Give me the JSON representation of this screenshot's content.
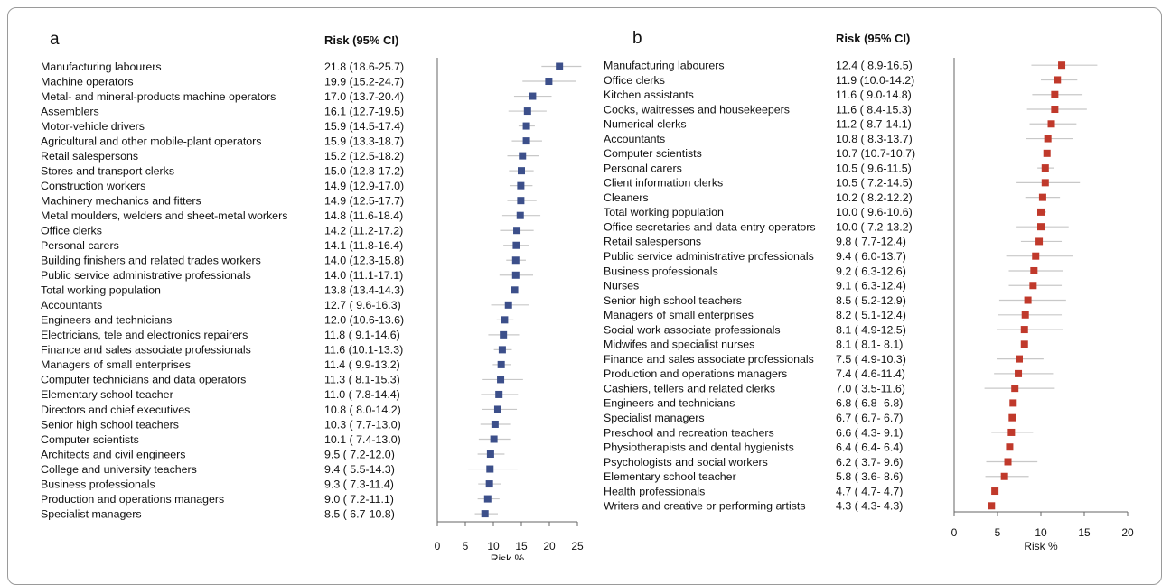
{
  "chart_data": [
    {
      "type": "forest",
      "panel_label": "a",
      "column_header": "Risk (95% CI)",
      "xlabel": "Risk %",
      "xlim": [
        0,
        25
      ],
      "xticks": [
        0,
        5,
        10,
        15,
        20,
        25
      ],
      "marker_color": "#3c4f8a",
      "rows": [
        {
          "label": "Manufacturing labourers",
          "ci_text": "21.8 (18.6-25.7)",
          "value": 21.8,
          "lower": 18.6,
          "upper": 25.7
        },
        {
          "label": "Machine operators",
          "ci_text": "19.9 (15.2-24.7)",
          "value": 19.9,
          "lower": 15.2,
          "upper": 24.7
        },
        {
          "label": "Metal- and mineral-products machine operators",
          "ci_text": "17.0 (13.7-20.4)",
          "value": 17.0,
          "lower": 13.7,
          "upper": 20.4
        },
        {
          "label": "Assemblers",
          "ci_text": "16.1 (12.7-19.5)",
          "value": 16.1,
          "lower": 12.7,
          "upper": 19.5
        },
        {
          "label": "Motor-vehicle drivers",
          "ci_text": "15.9 (14.5-17.4)",
          "value": 15.9,
          "lower": 14.5,
          "upper": 17.4
        },
        {
          "label": "Agricultural and other mobile-plant operators",
          "ci_text": "15.9 (13.3-18.7)",
          "value": 15.9,
          "lower": 13.3,
          "upper": 18.7
        },
        {
          "label": "Retail salespersons",
          "ci_text": "15.2 (12.5-18.2)",
          "value": 15.2,
          "lower": 12.5,
          "upper": 18.2
        },
        {
          "label": "Stores and transport clerks",
          "ci_text": "15.0 (12.8-17.2)",
          "value": 15.0,
          "lower": 12.8,
          "upper": 17.2
        },
        {
          "label": "Construction workers",
          "ci_text": "14.9 (12.9-17.0)",
          "value": 14.9,
          "lower": 12.9,
          "upper": 17.0
        },
        {
          "label": "Machinery mechanics and fitters",
          "ci_text": "14.9 (12.5-17.7)",
          "value": 14.9,
          "lower": 12.5,
          "upper": 17.7
        },
        {
          "label": "Metal moulders, welders and sheet-metal workers",
          "ci_text": "14.8 (11.6-18.4)",
          "value": 14.8,
          "lower": 11.6,
          "upper": 18.4
        },
        {
          "label": "Office clerks",
          "ci_text": "14.2 (11.2-17.2)",
          "value": 14.2,
          "lower": 11.2,
          "upper": 17.2
        },
        {
          "label": "Personal carers",
          "ci_text": "14.1 (11.8-16.4)",
          "value": 14.1,
          "lower": 11.8,
          "upper": 16.4
        },
        {
          "label": "Building finishers and related trades workers",
          "ci_text": "14.0 (12.3-15.8)",
          "value": 14.0,
          "lower": 12.3,
          "upper": 15.8
        },
        {
          "label": "Public service administrative professionals",
          "ci_text": "14.0 (11.1-17.1)",
          "value": 14.0,
          "lower": 11.1,
          "upper": 17.1
        },
        {
          "label": "Total working population",
          "ci_text": "13.8 (13.4-14.3)",
          "value": 13.8,
          "lower": 13.4,
          "upper": 14.3
        },
        {
          "label": "Accountants",
          "ci_text": "12.7 ( 9.6-16.3)",
          "value": 12.7,
          "lower": 9.6,
          "upper": 16.3
        },
        {
          "label": "Engineers and technicians",
          "ci_text": "12.0 (10.6-13.6)",
          "value": 12.0,
          "lower": 10.6,
          "upper": 13.6
        },
        {
          "label": "Electricians, tele and electronics repairers",
          "ci_text": "11.8 ( 9.1-14.6)",
          "value": 11.8,
          "lower": 9.1,
          "upper": 14.6
        },
        {
          "label": "Finance and sales associate professionals",
          "ci_text": "11.6 (10.1-13.3)",
          "value": 11.6,
          "lower": 10.1,
          "upper": 13.3
        },
        {
          "label": "Managers of small enterprises",
          "ci_text": "11.4 ( 9.9-13.2)",
          "value": 11.4,
          "lower": 9.9,
          "upper": 13.2
        },
        {
          "label": "Computer technicians and data operators",
          "ci_text": "11.3 ( 8.1-15.3)",
          "value": 11.3,
          "lower": 8.1,
          "upper": 15.3
        },
        {
          "label": "Elementary school teacher",
          "ci_text": "11.0 ( 7.8-14.4)",
          "value": 11.0,
          "lower": 7.8,
          "upper": 14.4
        },
        {
          "label": "Directors and chief executives",
          "ci_text": "10.8 ( 8.0-14.2)",
          "value": 10.8,
          "lower": 8.0,
          "upper": 14.2
        },
        {
          "label": "Senior high school teachers",
          "ci_text": "10.3 ( 7.7-13.0)",
          "value": 10.3,
          "lower": 7.7,
          "upper": 13.0
        },
        {
          "label": "Computer scientists",
          "ci_text": "10.1 ( 7.4-13.0)",
          "value": 10.1,
          "lower": 7.4,
          "upper": 13.0
        },
        {
          "label": "Architects and civil engineers",
          "ci_text": "9.5 ( 7.2-12.0)",
          "value": 9.5,
          "lower": 7.2,
          "upper": 12.0
        },
        {
          "label": "College and university teachers",
          "ci_text": "9.4 ( 5.5-14.3)",
          "value": 9.4,
          "lower": 5.5,
          "upper": 14.3
        },
        {
          "label": "Business professionals",
          "ci_text": "9.3 ( 7.3-11.4)",
          "value": 9.3,
          "lower": 7.3,
          "upper": 11.4
        },
        {
          "label": "Production and operations managers",
          "ci_text": "9.0 ( 7.2-11.1)",
          "value": 9.0,
          "lower": 7.2,
          "upper": 11.1
        },
        {
          "label": "Specialist managers",
          "ci_text": "8.5 ( 6.7-10.8)",
          "value": 8.5,
          "lower": 6.7,
          "upper": 10.8
        }
      ]
    },
    {
      "type": "forest",
      "panel_label": "b",
      "column_header": "Risk (95% CI)",
      "xlabel": "Risk %",
      "xlim": [
        0,
        20
      ],
      "xticks": [
        0,
        5,
        10,
        15,
        20
      ],
      "marker_color": "#c0392b",
      "rows": [
        {
          "label": "Manufacturing labourers",
          "ci_text": "12.4 ( 8.9-16.5)",
          "value": 12.4,
          "lower": 8.9,
          "upper": 16.5
        },
        {
          "label": "Office clerks",
          "ci_text": "11.9 (10.0-14.2)",
          "value": 11.9,
          "lower": 10.0,
          "upper": 14.2
        },
        {
          "label": "Kitchen assistants",
          "ci_text": "11.6 ( 9.0-14.8)",
          "value": 11.6,
          "lower": 9.0,
          "upper": 14.8
        },
        {
          "label": "Cooks, waitresses and housekeepers",
          "ci_text": "11.6 ( 8.4-15.3)",
          "value": 11.6,
          "lower": 8.4,
          "upper": 15.3
        },
        {
          "label": "Numerical clerks",
          "ci_text": "11.2 ( 8.7-14.1)",
          "value": 11.2,
          "lower": 8.7,
          "upper": 14.1
        },
        {
          "label": "Accountants",
          "ci_text": "10.8 ( 8.3-13.7)",
          "value": 10.8,
          "lower": 8.3,
          "upper": 13.7
        },
        {
          "label": "Computer scientists",
          "ci_text": "10.7 (10.7-10.7)",
          "value": 10.7,
          "lower": 10.7,
          "upper": 10.7
        },
        {
          "label": "Personal carers",
          "ci_text": "10.5 ( 9.6-11.5)",
          "value": 10.5,
          "lower": 9.6,
          "upper": 11.5
        },
        {
          "label": "Client information clerks",
          "ci_text": "10.5 ( 7.2-14.5)",
          "value": 10.5,
          "lower": 7.2,
          "upper": 14.5
        },
        {
          "label": "Cleaners",
          "ci_text": "10.2 ( 8.2-12.2)",
          "value": 10.2,
          "lower": 8.2,
          "upper": 12.2
        },
        {
          "label": "Total working population",
          "ci_text": "10.0 ( 9.6-10.6)",
          "value": 10.0,
          "lower": 9.6,
          "upper": 10.6
        },
        {
          "label": "Office secretaries and data entry operators",
          "ci_text": "10.0 ( 7.2-13.2)",
          "value": 10.0,
          "lower": 7.2,
          "upper": 13.2
        },
        {
          "label": "Retail salespersons",
          "ci_text": "9.8 ( 7.7-12.4)",
          "value": 9.8,
          "lower": 7.7,
          "upper": 12.4
        },
        {
          "label": "Public service administrative professionals",
          "ci_text": "9.4 ( 6.0-13.7)",
          "value": 9.4,
          "lower": 6.0,
          "upper": 13.7
        },
        {
          "label": "Business professionals",
          "ci_text": "9.2 ( 6.3-12.6)",
          "value": 9.2,
          "lower": 6.3,
          "upper": 12.6
        },
        {
          "label": "Nurses",
          "ci_text": "9.1 ( 6.3-12.4)",
          "value": 9.1,
          "lower": 6.3,
          "upper": 12.4
        },
        {
          "label": "Senior high school teachers",
          "ci_text": "8.5 ( 5.2-12.9)",
          "value": 8.5,
          "lower": 5.2,
          "upper": 12.9
        },
        {
          "label": "Managers of small enterprises",
          "ci_text": "8.2 ( 5.1-12.4)",
          "value": 8.2,
          "lower": 5.1,
          "upper": 12.4
        },
        {
          "label": "Social work associate professionals",
          "ci_text": "8.1 ( 4.9-12.5)",
          "value": 8.1,
          "lower": 4.9,
          "upper": 12.5
        },
        {
          "label": "Midwifes and specialist nurses",
          "ci_text": "8.1 ( 8.1- 8.1)",
          "value": 8.1,
          "lower": 8.1,
          "upper": 8.1
        },
        {
          "label": "Finance and sales associate professionals",
          "ci_text": "7.5 ( 4.9-10.3)",
          "value": 7.5,
          "lower": 4.9,
          "upper": 10.3
        },
        {
          "label": "Production and operations managers",
          "ci_text": "7.4 ( 4.6-11.4)",
          "value": 7.4,
          "lower": 4.6,
          "upper": 11.4
        },
        {
          "label": "Cashiers, tellers and related clerks",
          "ci_text": "7.0 ( 3.5-11.6)",
          "value": 7.0,
          "lower": 3.5,
          "upper": 11.6
        },
        {
          "label": "Engineers and technicians",
          "ci_text": "6.8 ( 6.8- 6.8)",
          "value": 6.8,
          "lower": 6.8,
          "upper": 6.8
        },
        {
          "label": "Specialist managers",
          "ci_text": "6.7 ( 6.7- 6.7)",
          "value": 6.7,
          "lower": 6.7,
          "upper": 6.7
        },
        {
          "label": "Preschool and recreation teachers",
          "ci_text": "6.6 ( 4.3- 9.1)",
          "value": 6.6,
          "lower": 4.3,
          "upper": 9.1
        },
        {
          "label": "Physiotherapists and dental hygienists",
          "ci_text": "6.4 ( 6.4- 6.4)",
          "value": 6.4,
          "lower": 6.4,
          "upper": 6.4
        },
        {
          "label": "Psychologists and social workers",
          "ci_text": "6.2 ( 3.7- 9.6)",
          "value": 6.2,
          "lower": 3.7,
          "upper": 9.6
        },
        {
          "label": "Elementary school teacher",
          "ci_text": "5.8 ( 3.6- 8.6)",
          "value": 5.8,
          "lower": 3.6,
          "upper": 8.6
        },
        {
          "label": "Health professionals",
          "ci_text": "4.7 ( 4.7- 4.7)",
          "value": 4.7,
          "lower": 4.7,
          "upper": 4.7
        },
        {
          "label": "Writers and creative or performing artists",
          "ci_text": "4.3 ( 4.3- 4.3)",
          "value": 4.3,
          "lower": 4.3,
          "upper": 4.3
        }
      ]
    }
  ]
}
